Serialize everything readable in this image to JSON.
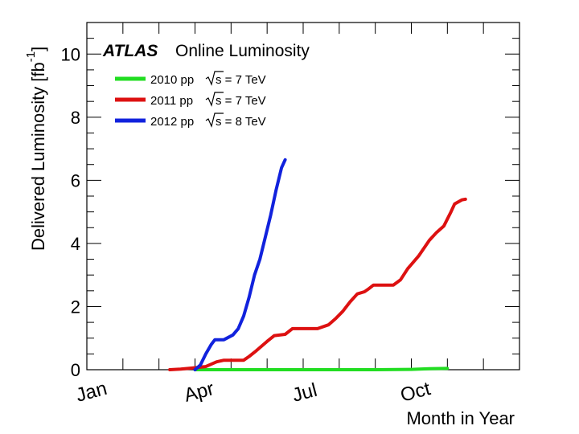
{
  "chart_data": {
    "type": "line",
    "brand": "ATLAS",
    "title": "Online Luminosity",
    "xlabel": "Month in Year",
    "ylabel": "Delivered Luminosity [fb",
    "ylabel_exponent": "-1",
    "ylabel_suffix": "]",
    "ylim": [
      0,
      11
    ],
    "yticks": [
      0,
      2,
      4,
      6,
      8,
      10
    ],
    "xlim": [
      0,
      12
    ],
    "month_labels": [
      {
        "text": "Jan",
        "month": 0.2
      },
      {
        "text": "Apr",
        "month": 3.2
      },
      {
        "text": "Jul",
        "month": 6.2
      },
      {
        "text": "Oct",
        "month": 9.2
      }
    ],
    "series": [
      {
        "name": "2010",
        "legend_prefix": "2010 pp",
        "legend_suffix": "s = 7 TeV",
        "color": "#22dd22",
        "points": [
          [
            3.0,
            0.0
          ],
          [
            4.0,
            0.0
          ],
          [
            6.0,
            0.0
          ],
          [
            8.0,
            0.0
          ],
          [
            9.0,
            0.01
          ],
          [
            9.5,
            0.03
          ],
          [
            10.0,
            0.04
          ]
        ]
      },
      {
        "name": "2011",
        "legend_prefix": "2011 pp",
        "legend_suffix": "s = 7 TeV",
        "color": "#dd1111",
        "points": [
          [
            2.3,
            0.0
          ],
          [
            2.6,
            0.02
          ],
          [
            2.9,
            0.05
          ],
          [
            3.3,
            0.1
          ],
          [
            3.6,
            0.25
          ],
          [
            3.8,
            0.3
          ],
          [
            4.0,
            0.3
          ],
          [
            4.35,
            0.3
          ],
          [
            4.5,
            0.42
          ],
          [
            4.7,
            0.6
          ],
          [
            5.0,
            0.9
          ],
          [
            5.2,
            1.08
          ],
          [
            5.5,
            1.12
          ],
          [
            5.7,
            1.3
          ],
          [
            6.0,
            1.3
          ],
          [
            6.4,
            1.3
          ],
          [
            6.7,
            1.42
          ],
          [
            6.9,
            1.62
          ],
          [
            7.1,
            1.85
          ],
          [
            7.3,
            2.15
          ],
          [
            7.5,
            2.4
          ],
          [
            7.7,
            2.47
          ],
          [
            7.8,
            2.55
          ],
          [
            7.95,
            2.68
          ],
          [
            8.5,
            2.68
          ],
          [
            8.7,
            2.85
          ],
          [
            8.9,
            3.2
          ],
          [
            9.2,
            3.6
          ],
          [
            9.5,
            4.1
          ],
          [
            9.7,
            4.35
          ],
          [
            9.9,
            4.55
          ],
          [
            10.1,
            5.0
          ],
          [
            10.2,
            5.25
          ],
          [
            10.4,
            5.38
          ],
          [
            10.5,
            5.4
          ]
        ]
      },
      {
        "name": "2012",
        "legend_prefix": "2012 pp",
        "legend_suffix": "s = 8 TeV",
        "color": "#1122dd",
        "points": [
          [
            3.0,
            0.0
          ],
          [
            3.15,
            0.15
          ],
          [
            3.3,
            0.5
          ],
          [
            3.45,
            0.8
          ],
          [
            3.55,
            0.95
          ],
          [
            3.8,
            0.95
          ],
          [
            4.05,
            1.1
          ],
          [
            4.2,
            1.3
          ],
          [
            4.35,
            1.7
          ],
          [
            4.5,
            2.3
          ],
          [
            4.65,
            3.0
          ],
          [
            4.8,
            3.5
          ],
          [
            4.95,
            4.2
          ],
          [
            5.1,
            4.9
          ],
          [
            5.25,
            5.7
          ],
          [
            5.4,
            6.4
          ],
          [
            5.5,
            6.65
          ]
        ]
      }
    ]
  }
}
